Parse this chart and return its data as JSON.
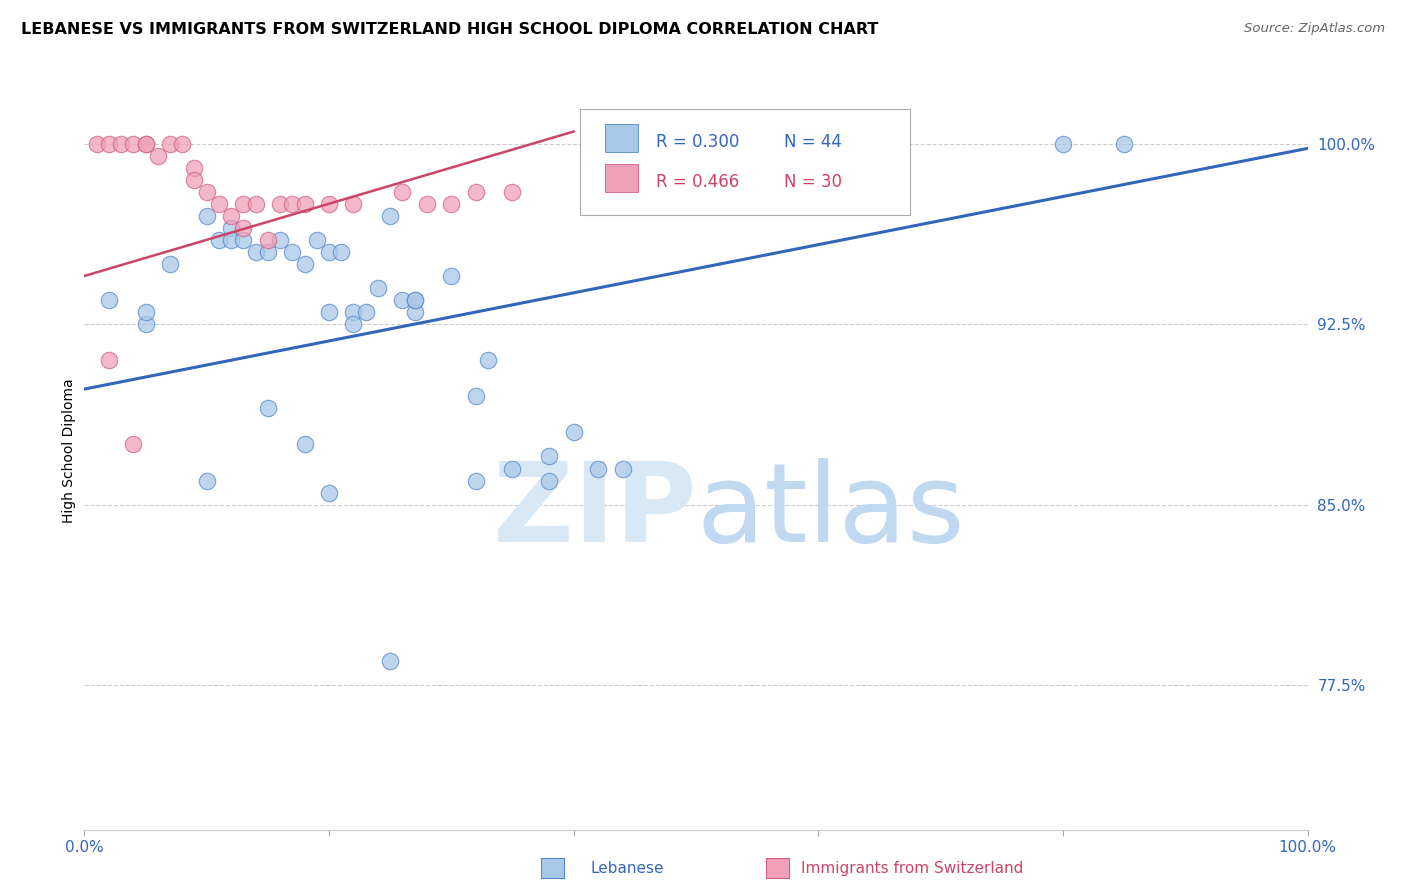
{
  "title": "LEBANESE VS IMMIGRANTS FROM SWITZERLAND HIGH SCHOOL DIPLOMA CORRELATION CHART",
  "source": "Source: ZipAtlas.com",
  "ylabel": "High School Diploma",
  "xlim": [
    0.0,
    1.0
  ],
  "ylim": [
    0.715,
    1.03
  ],
  "yticks": [
    0.775,
    0.85,
    0.925,
    1.0
  ],
  "ytick_labels": [
    "77.5%",
    "85.0%",
    "92.5%",
    "100.0%"
  ],
  "legend_R_blue": "R = 0.300",
  "legend_N_blue": "N = 44",
  "legend_R_pink": "R = 0.466",
  "legend_N_pink": "N = 30",
  "blue_fill": "#a8c8e8",
  "blue_edge": "#5588cc",
  "pink_fill": "#f0a0b8",
  "pink_edge": "#d06080",
  "blue_line_color": "#3366bb",
  "pink_line_color": "#cc4466",
  "watermark_color": "#d8e8f4",
  "blue_scatter_x": [
    0.02,
    0.05,
    0.05,
    0.07,
    0.1,
    0.11,
    0.12,
    0.12,
    0.13,
    0.14,
    0.15,
    0.16,
    0.17,
    0.18,
    0.19,
    0.2,
    0.2,
    0.21,
    0.22,
    0.22,
    0.23,
    0.24,
    0.25,
    0.26,
    0.27,
    0.27,
    0.27,
    0.3,
    0.32,
    0.33,
    0.35,
    0.38,
    0.4,
    0.42,
    0.44,
    0.8,
    0.85,
    0.32,
    0.15,
    0.18,
    0.1,
    0.38,
    0.2,
    0.25
  ],
  "blue_scatter_y": [
    0.935,
    0.925,
    0.93,
    0.95,
    0.97,
    0.96,
    0.965,
    0.96,
    0.96,
    0.955,
    0.955,
    0.96,
    0.955,
    0.95,
    0.96,
    0.955,
    0.93,
    0.955,
    0.93,
    0.925,
    0.93,
    0.94,
    0.97,
    0.935,
    0.93,
    0.935,
    0.935,
    0.945,
    0.895,
    0.91,
    0.865,
    0.87,
    0.88,
    0.865,
    0.865,
    1.0,
    1.0,
    0.86,
    0.89,
    0.875,
    0.86,
    0.86,
    0.855,
    0.785
  ],
  "pink_scatter_x": [
    0.01,
    0.02,
    0.03,
    0.04,
    0.05,
    0.05,
    0.06,
    0.07,
    0.08,
    0.09,
    0.09,
    0.1,
    0.11,
    0.12,
    0.13,
    0.13,
    0.14,
    0.15,
    0.16,
    0.17,
    0.18,
    0.2,
    0.22,
    0.26,
    0.28,
    0.3,
    0.32,
    0.35,
    0.02,
    0.04
  ],
  "pink_scatter_y": [
    1.0,
    1.0,
    1.0,
    1.0,
    1.0,
    1.0,
    0.995,
    1.0,
    1.0,
    0.99,
    0.985,
    0.98,
    0.975,
    0.97,
    0.975,
    0.965,
    0.975,
    0.96,
    0.975,
    0.975,
    0.975,
    0.975,
    0.975,
    0.98,
    0.975,
    0.975,
    0.98,
    0.98,
    0.91,
    0.875
  ],
  "blue_line_x_start": 0.0,
  "blue_line_x_end": 1.0,
  "blue_line_y_start": 0.898,
  "blue_line_y_end": 0.998,
  "pink_line_x_start": 0.0,
  "pink_line_x_end": 0.4,
  "pink_line_y_start": 0.945,
  "pink_line_y_end": 1.005
}
